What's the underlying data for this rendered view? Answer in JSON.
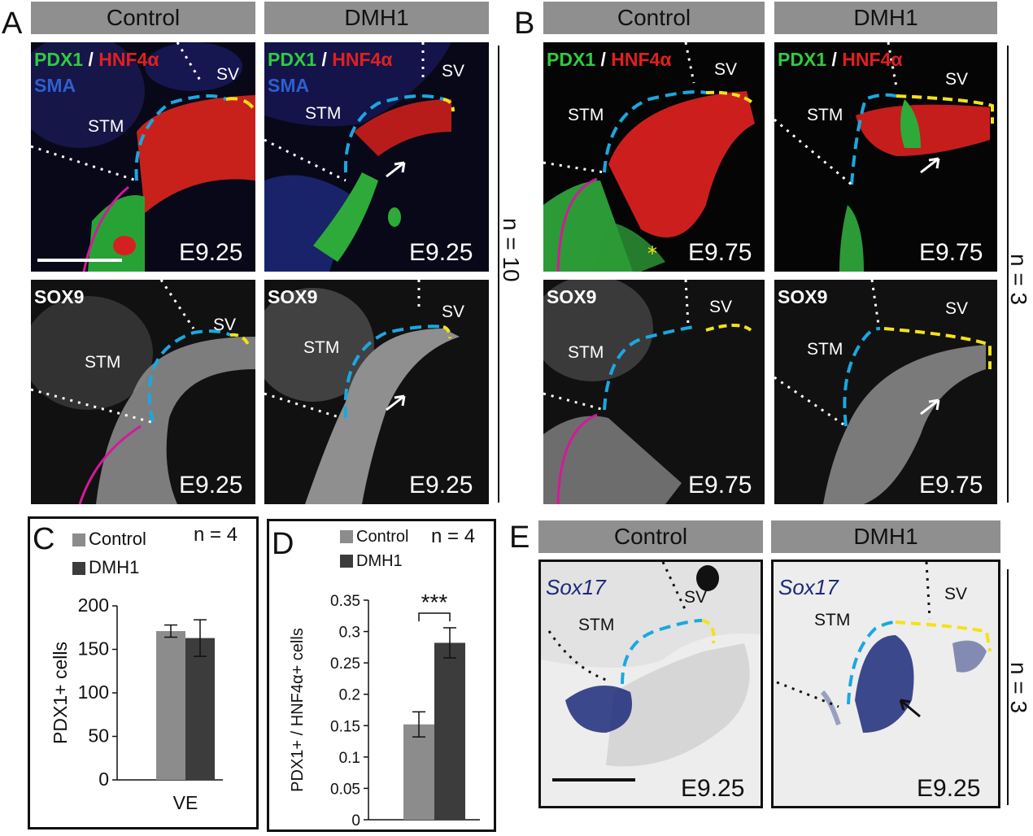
{
  "panels": {
    "A": "A",
    "B": "B",
    "C": "C",
    "D": "D",
    "E": "E"
  },
  "headers": {
    "a_control": "Control",
    "a_dmh1": "DMH1",
    "b_control": "Control",
    "b_dmh1": "DMH1",
    "e_control": "Control",
    "e_dmh1": "DMH1"
  },
  "markers": {
    "pdx1": "PDX1",
    "slash": " / ",
    "hnf4a": "HNF4α",
    "sma": "SMA",
    "sox9": "SOX9",
    "sox17": "Sox17"
  },
  "labels": {
    "stm": "STM",
    "sv": "SV"
  },
  "stages": {
    "a_tl": "E9.25",
    "a_tr": "E9.25",
    "a_bl": "E9.25",
    "a_br": "E9.25",
    "b_tl": "E9.75",
    "b_tr": "E9.75",
    "b_bl": "E9.75",
    "b_br": "E9.75",
    "e_l": "E9.25",
    "e_r": "E9.25"
  },
  "n_labels": {
    "a": "n = 10",
    "b": "n = 3",
    "c": "n = 4",
    "d": "n = 4",
    "e": "n = 3"
  },
  "colors": {
    "pdx1": "#2ecc40",
    "hnf4a": "#e0201f",
    "sma": "#2d5fcf",
    "dash_blue": "#1aa8e0",
    "dash_yellow": "#f2e21a",
    "magenta": "#d4199a",
    "control_bar": "#8c8c8c",
    "dmh1_bar": "#3c3c3c",
    "sox17": "#1c2a7a"
  },
  "chart_data": [
    {
      "type": "bar",
      "panel": "C",
      "categories": [
        "VE"
      ],
      "series": [
        {
          "name": "Control",
          "values": [
            171
          ],
          "error": [
            7
          ]
        },
        {
          "name": "DMH1",
          "values": [
            163
          ],
          "error": [
            21
          ]
        }
      ],
      "ylabel": "PDX1+ cells",
      "ylim": [
        0,
        200
      ],
      "yticks": [
        "0",
        "50",
        "100",
        "150",
        "200"
      ],
      "legend": "top-left"
    },
    {
      "type": "bar",
      "panel": "D",
      "categories": [
        ""
      ],
      "series": [
        {
          "name": "Control",
          "values": [
            0.152
          ],
          "error": [
            0.02
          ]
        },
        {
          "name": "DMH1",
          "values": [
            0.282
          ],
          "error": [
            0.024
          ]
        }
      ],
      "ylabel": "PDX1+ / HNF4α+ cells",
      "ylim": [
        0,
        0.35
      ],
      "yticks": [
        "0",
        "0.05",
        "0.1",
        "0.15",
        "0.2",
        "0.25",
        "0.3",
        "0.35"
      ],
      "significance": "***",
      "legend": "top-left"
    }
  ]
}
